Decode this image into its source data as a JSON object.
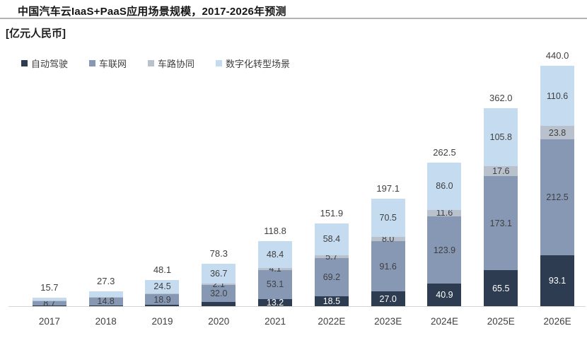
{
  "header": {
    "title": "中国汽车云IaaS+PaaS应用场景规模，2017-2026年预测",
    "unit_label": "[亿元人民币]"
  },
  "colors": {
    "axis_line": "#d4d4d4",
    "title_divider": "#b3b3b3",
    "label_text": "#3f3f3f",
    "label_text_inverse": "#ffffff"
  },
  "chart_data": {
    "type": "bar",
    "stacked": true,
    "title": "中国汽车云IaaS+PaaS应用场景规模，2017-2026年预测",
    "ylabel": "[亿元人民币]",
    "legend_position": "top-left",
    "grid": false,
    "ylim": [
      0,
      440
    ],
    "categories": [
      "2017",
      "2018",
      "2019",
      "2020",
      "2021",
      "2022E",
      "2023E",
      "2024E",
      "2025E",
      "2026E"
    ],
    "totals": [
      "15.7",
      "27.3",
      "48.1",
      "78.3",
      "118.8",
      "151.9",
      "197.1",
      "262.5",
      "362.0",
      "440.0"
    ],
    "series": [
      {
        "name": "自动驾驶",
        "key": "autonomous-driving",
        "color": "#2d3c51",
        "label_color": "#ffffff",
        "values": [
          0.8,
          1.5,
          2.6,
          7.5,
          13.2,
          18.5,
          27.0,
          40.9,
          65.5,
          93.1
        ],
        "labels": [
          "",
          "",
          "",
          "",
          "13.2",
          "18.5",
          "27.0",
          "40.9",
          "65.5",
          "93.1"
        ]
      },
      {
        "name": "车联网",
        "key": "connected-vehicle",
        "color": "#8698b4",
        "label_color": "#3f3f3f",
        "values": [
          8.7,
          14.8,
          18.9,
          32.0,
          53.1,
          69.2,
          91.6,
          123.9,
          173.1,
          212.5
        ],
        "labels": [
          "8.7",
          "14.8",
          "18.9",
          "32.0",
          "53.1",
          "69.2",
          "91.6",
          "123.9",
          "173.1",
          "212.5"
        ]
      },
      {
        "name": "车路协同",
        "key": "vehicle-road-coordination",
        "color": "#b8c1cc",
        "label_color": "#3f3f3f",
        "values": [
          0.3,
          0.4,
          2.1,
          2.1,
          4.1,
          5.7,
          8.0,
          11.6,
          17.6,
          23.8
        ],
        "labels": [
          "",
          "",
          "",
          "2.1",
          "4.1",
          "5.7",
          "8.0",
          "11.6",
          "17.6",
          "23.8"
        ]
      },
      {
        "name": "数字化转型场景",
        "key": "digital-transformation",
        "color": "#c5dbef",
        "label_color": "#3f3f3f",
        "values": [
          5.9,
          10.6,
          24.5,
          36.7,
          48.4,
          58.4,
          70.5,
          86.0,
          105.8,
          110.6
        ],
        "labels": [
          "",
          "",
          "24.5",
          "36.7",
          "48.4",
          "58.4",
          "70.5",
          "86.0",
          "105.8",
          "110.6"
        ]
      }
    ]
  }
}
